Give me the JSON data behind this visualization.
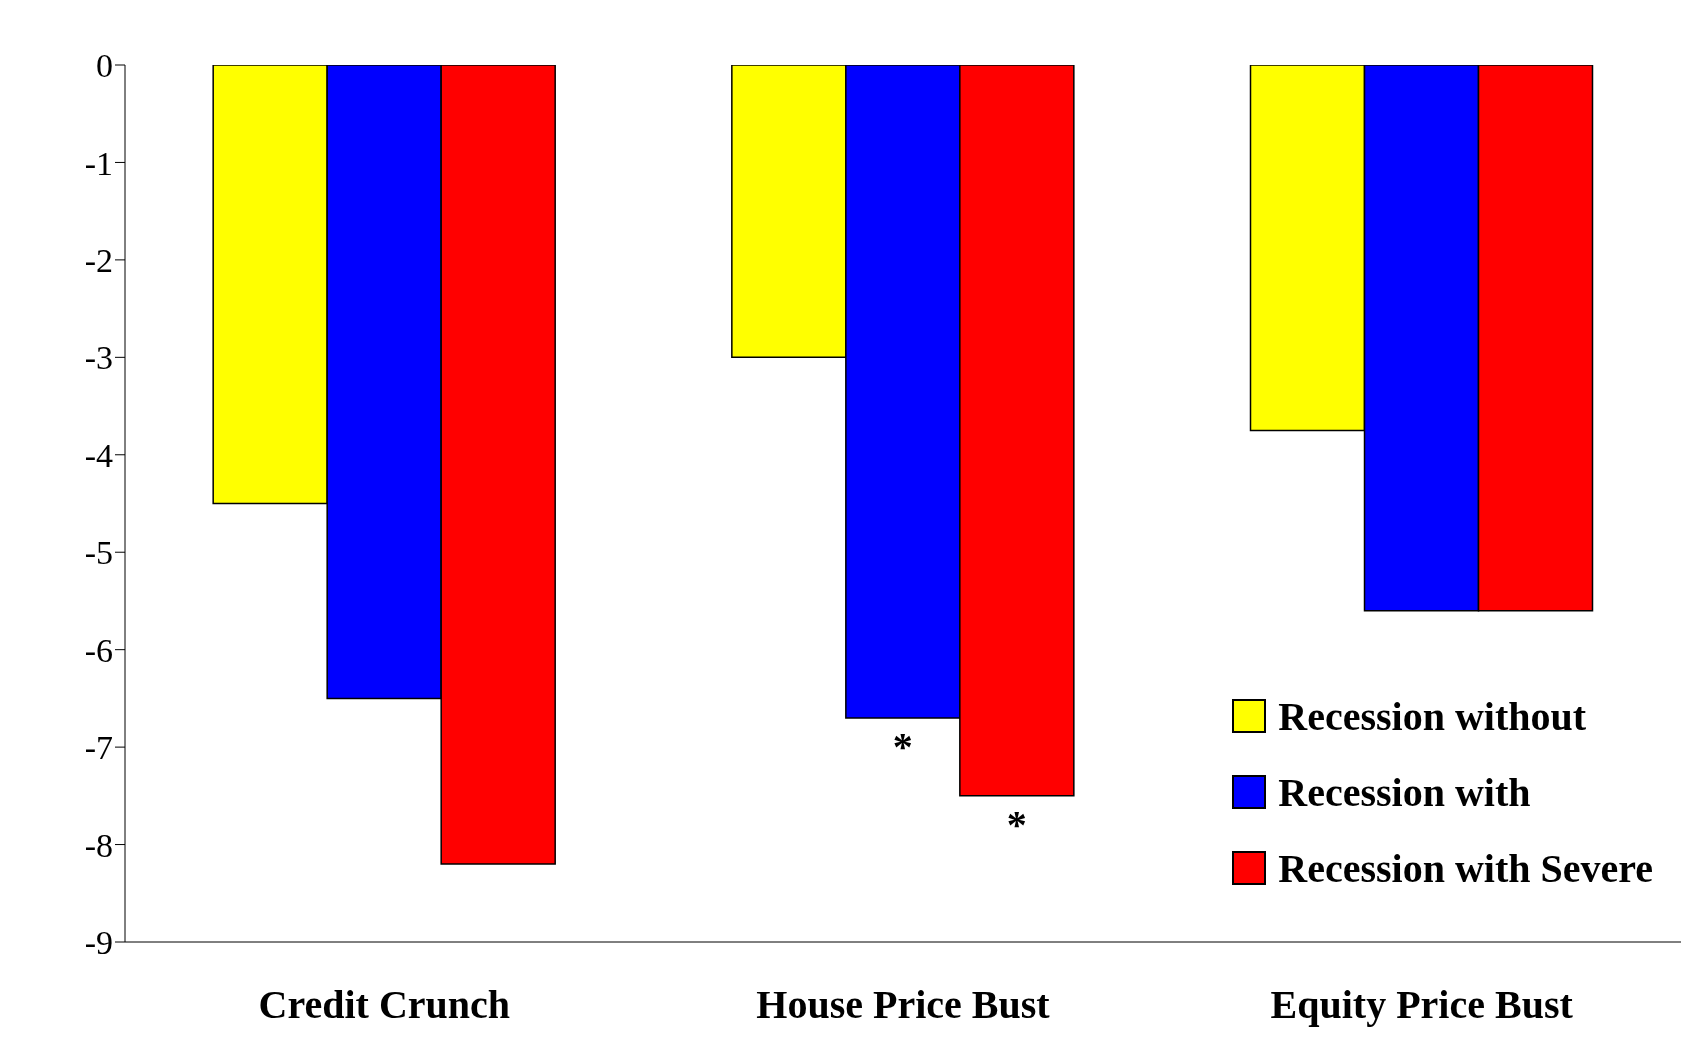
{
  "chart_data": {
    "type": "bar",
    "categories": [
      "Credit Crunch",
      "House Price Bust",
      "Equity Price Bust"
    ],
    "series": [
      {
        "name": "Recession without",
        "color": "#ffff00",
        "values": [
          -4.5,
          -3.0,
          -3.75
        ]
      },
      {
        "name": "Recession with",
        "color": "#0000ff",
        "values": [
          -6.5,
          -6.7,
          -5.6
        ],
        "value_labels": [
          null,
          "*",
          null
        ]
      },
      {
        "name": "Recession with Severe",
        "color": "#ff0000",
        "values": [
          -8.2,
          -7.5,
          -5.6
        ],
        "value_labels": [
          null,
          "*",
          null
        ]
      }
    ],
    "ylim": [
      -9,
      0
    ],
    "yticks": [
      0,
      -1,
      -2,
      -3,
      -4,
      -5,
      -6,
      -7,
      -8,
      -9
    ],
    "grid": false,
    "legend": "bottom right"
  }
}
